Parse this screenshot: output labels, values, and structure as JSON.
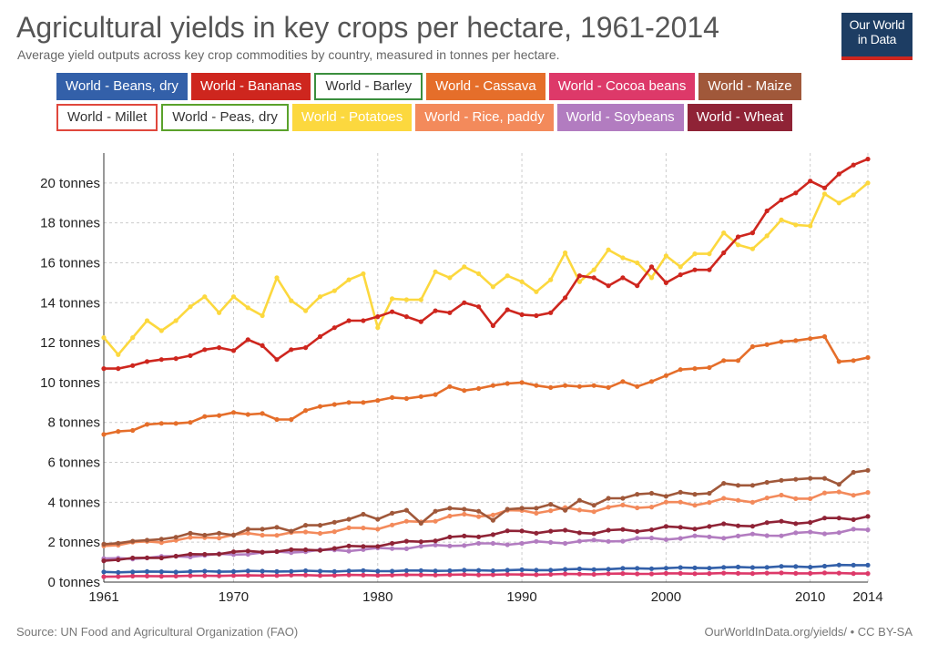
{
  "header": {
    "title": "Agricultural yields in key crops per hectare, 1961-2014",
    "subtitle": "Average yield outputs across key crop commodities by country, measured in tonnes per hectare."
  },
  "logo": {
    "line1": "Our World",
    "line2": "in Data"
  },
  "footer": {
    "source": "Source: UN Food and Agricultural Organization (FAO)",
    "license": "OurWorldInData.org/yields/ • CC BY-SA"
  },
  "chart_data": {
    "type": "line",
    "title": "Agricultural yields in key crops per hectare, 1961-2014",
    "xlabel": "",
    "ylabel": "",
    "xlim": [
      1961,
      2014
    ],
    "ylim": [
      0,
      21.5
    ],
    "x_ticks": [
      1961,
      1970,
      1980,
      1990,
      2000,
      2010,
      2014
    ],
    "y_ticks": [
      0,
      2,
      4,
      6,
      8,
      10,
      12,
      14,
      16,
      18,
      20
    ],
    "y_tick_labels": [
      "0 tonnes",
      "2 tonnes",
      "4 tonnes",
      "6 tonnes",
      "8 tonnes",
      "10 tonnes",
      "12 tonnes",
      "14 tonnes",
      "16 tonnes",
      "18 tonnes",
      "20 tonnes"
    ],
    "grid": true,
    "legend_position": "top",
    "series": [
      {
        "name": "World - Beans, dry",
        "color": "#3360a9",
        "shown": true,
        "kp": [
          [
            1961,
            0.5
          ],
          [
            1970,
            0.54
          ],
          [
            1980,
            0.56
          ],
          [
            1990,
            0.6
          ],
          [
            2000,
            0.7
          ],
          [
            2010,
            0.78
          ],
          [
            2014,
            0.88
          ]
        ]
      },
      {
        "name": "World - Bananas",
        "color": "#ce261e",
        "shown": true,
        "values": {
          "1961": 10.7,
          "1962": 10.7,
          "1963": 10.85,
          "1964": 11.05,
          "1965": 11.15,
          "1966": 11.2,
          "1967": 11.35,
          "1968": 11.65,
          "1969": 11.75,
          "1970": 11.6,
          "1971": 12.15,
          "1972": 11.85,
          "1973": 11.15,
          "1974": 11.65,
          "1975": 11.75,
          "1976": 12.3,
          "1977": 12.75,
          "1978": 13.1,
          "1979": 13.1,
          "1980": 13.3,
          "1981": 13.55,
          "1982": 13.3,
          "1983": 13.05,
          "1984": 13.6,
          "1985": 13.5,
          "1986": 14.0,
          "1987": 13.8,
          "1988": 12.85,
          "1989": 13.65,
          "1990": 13.4,
          "1991": 13.35,
          "1992": 13.5,
          "1993": 14.25,
          "1994": 15.35,
          "1995": 15.25,
          "1996": 14.85,
          "1997": 15.25,
          "1998": 14.85,
          "1999": 15.8,
          "2000": 15.0,
          "2001": 15.4,
          "2002": 15.65,
          "2003": 15.65,
          "2004": 16.5,
          "2005": 17.3,
          "2006": 17.5,
          "2007": 18.6,
          "2008": 19.15,
          "2009": 19.5,
          "2010": 20.1,
          "2011": 19.75,
          "2012": 20.45,
          "2013": 20.9,
          "2014": 21.2
        }
      },
      {
        "name": "World - Barley",
        "color": "#3b8e3e",
        "shown": false
      },
      {
        "name": "World - Cassava",
        "color": "#e56e2a",
        "shown": true,
        "values": {
          "1961": 7.4,
          "1962": 7.55,
          "1963": 7.6,
          "1964": 7.9,
          "1965": 7.95,
          "1966": 7.95,
          "1967": 8.0,
          "1968": 8.3,
          "1969": 8.35,
          "1970": 8.5,
          "1971": 8.4,
          "1972": 8.45,
          "1973": 8.15,
          "1974": 8.15,
          "1975": 8.6,
          "1976": 8.8,
          "1977": 8.9,
          "1978": 9.0,
          "1979": 9.0,
          "1980": 9.1,
          "1981": 9.25,
          "1982": 9.2,
          "1983": 9.3,
          "1984": 9.4,
          "1985": 9.8,
          "1986": 9.6,
          "1987": 9.7,
          "1988": 9.85,
          "1989": 9.95,
          "1990": 10.0,
          "1991": 9.85,
          "1992": 9.75,
          "1993": 9.85,
          "1994": 9.8,
          "1995": 9.85,
          "1996": 9.75,
          "1997": 10.05,
          "1998": 9.8,
          "1999": 10.05,
          "2000": 10.35,
          "2001": 10.65,
          "2002": 10.7,
          "2003": 10.75,
          "2004": 11.1,
          "2005": 11.1,
          "2006": 11.8,
          "2007": 11.9,
          "2008": 12.05,
          "2009": 12.1,
          "2010": 12.2,
          "2011": 12.3,
          "2012": 11.05,
          "2013": 11.1,
          "2014": 11.25
        }
      },
      {
        "name": "World - Cocoa beans",
        "color": "#dd3969",
        "shown": true,
        "kp": [
          [
            1961,
            0.28
          ],
          [
            1970,
            0.33
          ],
          [
            1980,
            0.35
          ],
          [
            1990,
            0.38
          ],
          [
            2000,
            0.43
          ],
          [
            2010,
            0.45
          ],
          [
            2014,
            0.44
          ]
        ]
      },
      {
        "name": "World - Maize",
        "color": "#a0583a",
        "shown": true,
        "values": {
          "1961": 1.9,
          "1962": 1.95,
          "1963": 2.05,
          "1964": 2.1,
          "1965": 2.15,
          "1966": 2.25,
          "1967": 2.45,
          "1968": 2.35,
          "1969": 2.45,
          "1970": 2.35,
          "1971": 2.65,
          "1972": 2.65,
          "1973": 2.75,
          "1974": 2.55,
          "1975": 2.85,
          "1976": 2.85,
          "1977": 3.0,
          "1978": 3.15,
          "1979": 3.4,
          "1980": 3.15,
          "1981": 3.45,
          "1982": 3.6,
          "1983": 2.95,
          "1984": 3.55,
          "1985": 3.7,
          "1986": 3.65,
          "1987": 3.55,
          "1988": 3.1,
          "1989": 3.65,
          "1990": 3.7,
          "1991": 3.7,
          "1992": 3.9,
          "1993": 3.6,
          "1994": 4.1,
          "1995": 3.85,
          "1996": 4.2,
          "1997": 4.2,
          "1998": 4.4,
          "1999": 4.45,
          "2000": 4.3,
          "2001": 4.5,
          "2002": 4.4,
          "2003": 4.45,
          "2004": 4.95,
          "2005": 4.85,
          "2006": 4.85,
          "2007": 5.0,
          "2008": 5.1,
          "2009": 5.15,
          "2010": 5.2,
          "2011": 5.2,
          "2012": 4.9,
          "2013": 5.5,
          "2014": 5.6
        }
      },
      {
        "name": "World - Millet",
        "color": "#e0473c",
        "shown": false
      },
      {
        "name": "World - Peas, dry",
        "color": "#5aa22b",
        "shown": false
      },
      {
        "name": "World - Potatoes",
        "color": "#fcd83e",
        "shown": true,
        "values": {
          "1961": 12.25,
          "1962": 11.4,
          "1963": 12.25,
          "1964": 13.1,
          "1965": 12.6,
          "1966": 13.1,
          "1967": 13.8,
          "1968": 14.3,
          "1969": 13.5,
          "1970": 14.3,
          "1971": 13.75,
          "1972": 13.35,
          "1973": 15.25,
          "1974": 14.1,
          "1975": 13.6,
          "1976": 14.3,
          "1977": 14.6,
          "1978": 15.15,
          "1979": 15.45,
          "1980": 12.75,
          "1981": 14.2,
          "1982": 14.15,
          "1983": 14.15,
          "1984": 15.55,
          "1985": 15.25,
          "1986": 15.8,
          "1987": 15.45,
          "1988": 14.8,
          "1989": 15.35,
          "1990": 15.05,
          "1991": 14.55,
          "1992": 15.15,
          "1993": 16.5,
          "1994": 15.05,
          "1995": 15.65,
          "1996": 16.65,
          "1997": 16.25,
          "1998": 16.0,
          "1999": 15.25,
          "2000": 16.35,
          "2001": 15.8,
          "2002": 16.45,
          "2003": 16.45,
          "2004": 17.5,
          "2005": 16.9,
          "2006": 16.7,
          "2007": 17.35,
          "2008": 18.15,
          "2009": 17.9,
          "2010": 17.85,
          "2011": 19.45,
          "2012": 19.0,
          "2013": 19.4,
          "2014": 20.0
        }
      },
      {
        "name": "World - Rice, paddy",
        "color": "#f38a5b",
        "shown": true,
        "kp": [
          [
            1961,
            1.85
          ],
          [
            1965,
            2.05
          ],
          [
            1970,
            2.35
          ],
          [
            1975,
            2.45
          ],
          [
            1980,
            2.75
          ],
          [
            1985,
            3.25
          ],
          [
            1990,
            3.55
          ],
          [
            1995,
            3.65
          ],
          [
            2000,
            3.9
          ],
          [
            2005,
            4.1
          ],
          [
            2010,
            4.3
          ],
          [
            2014,
            4.55
          ]
        ]
      },
      {
        "name": "World - Soybeans",
        "color": "#b27cc0",
        "shown": true,
        "kp": [
          [
            1961,
            1.15
          ],
          [
            1965,
            1.25
          ],
          [
            1970,
            1.4
          ],
          [
            1975,
            1.55
          ],
          [
            1980,
            1.65
          ],
          [
            1985,
            1.85
          ],
          [
            1990,
            1.95
          ],
          [
            1995,
            2.05
          ],
          [
            2000,
            2.2
          ],
          [
            2005,
            2.3
          ],
          [
            2010,
            2.45
          ],
          [
            2014,
            2.6
          ]
        ]
      },
      {
        "name": "World - Wheat",
        "color": "#8f2336",
        "shown": true,
        "kp": [
          [
            1961,
            1.1
          ],
          [
            1965,
            1.25
          ],
          [
            1970,
            1.5
          ],
          [
            1975,
            1.6
          ],
          [
            1980,
            1.85
          ],
          [
            1985,
            2.2
          ],
          [
            1990,
            2.55
          ],
          [
            1995,
            2.5
          ],
          [
            2000,
            2.7
          ],
          [
            2005,
            2.85
          ],
          [
            2010,
            3.05
          ],
          [
            2014,
            3.3
          ]
        ]
      }
    ]
  }
}
